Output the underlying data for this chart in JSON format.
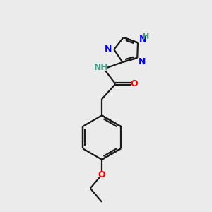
{
  "bg_color": "#ebebeb",
  "bond_color": "#1a1a1a",
  "N_color": "#0000ff",
  "O_color": "#ff0000",
  "H_color": "#4a9a8a",
  "lw": 1.6,
  "figsize": [
    3.0,
    3.0
  ],
  "dpi": 100,
  "xlim": [
    0,
    10
  ],
  "ylim": [
    0,
    10
  ]
}
